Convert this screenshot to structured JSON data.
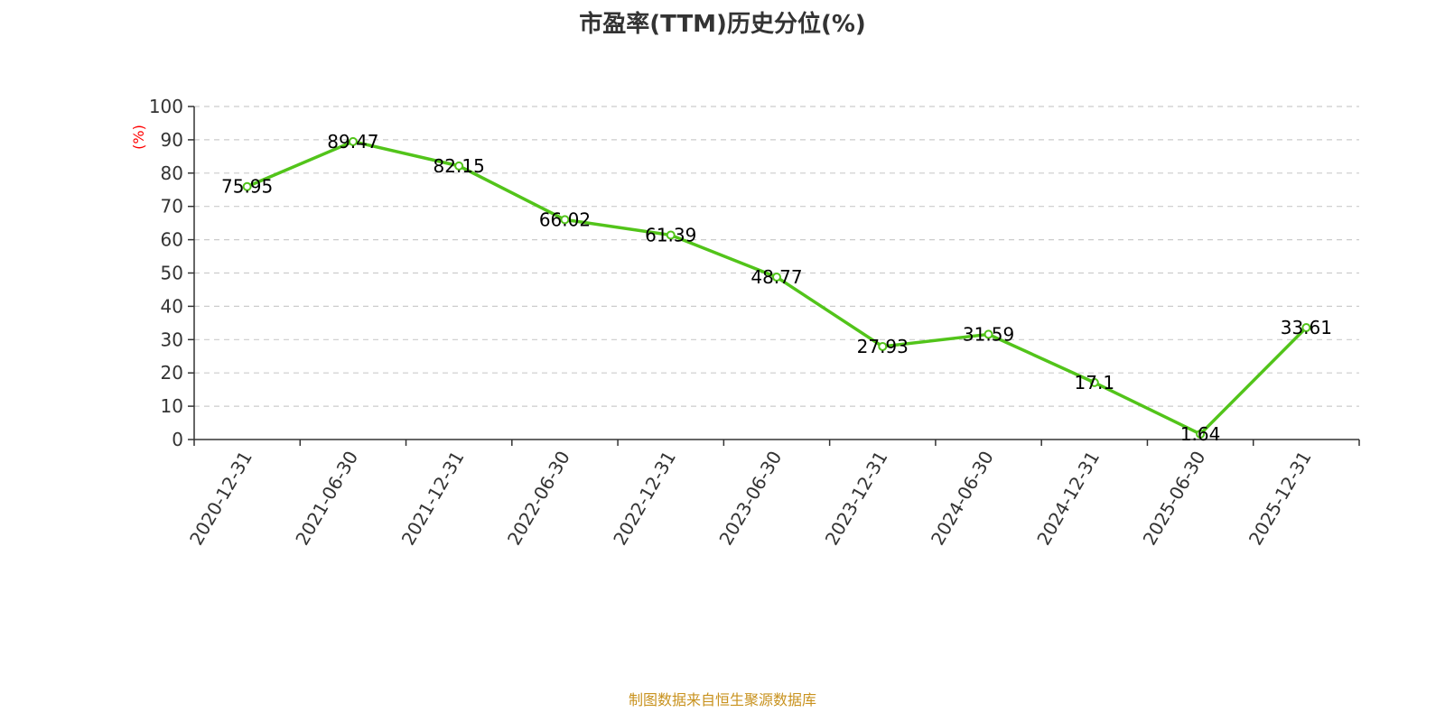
{
  "chart_data": {
    "type": "line",
    "title": "市盈率(TTM)历史分位(%)",
    "ylabel": "(%)",
    "xlabel": "",
    "categories": [
      "2020-12-31",
      "2021-06-30",
      "2021-12-31",
      "2022-06-30",
      "2022-12-31",
      "2023-06-30",
      "2023-12-31",
      "2024-06-30",
      "2024-12-31",
      "2025-06-30",
      "2025-12-31"
    ],
    "values": [
      75.95,
      89.47,
      82.15,
      66.02,
      61.39,
      48.77,
      27.93,
      31.59,
      17.1,
      1.64,
      33.61
    ],
    "data_labels": [
      "75.95",
      "89.47",
      "82.15",
      "66.02",
      "61.39",
      "48.77",
      "27.93",
      "31.59",
      "17.1",
      "1.64",
      "33.61"
    ],
    "ylim": [
      0,
      100
    ],
    "yticks": [
      "0",
      "10",
      "20",
      "30",
      "40",
      "50",
      "60",
      "70",
      "80",
      "90",
      "100"
    ],
    "grid": "horizontal dashed",
    "legend": "none",
    "colors": {
      "line": "#52c41a",
      "ylabel": "#ff0000",
      "axis": "#333333",
      "grid": "#cccccc"
    }
  },
  "footer": "制图数据来自恒生聚源数据库"
}
